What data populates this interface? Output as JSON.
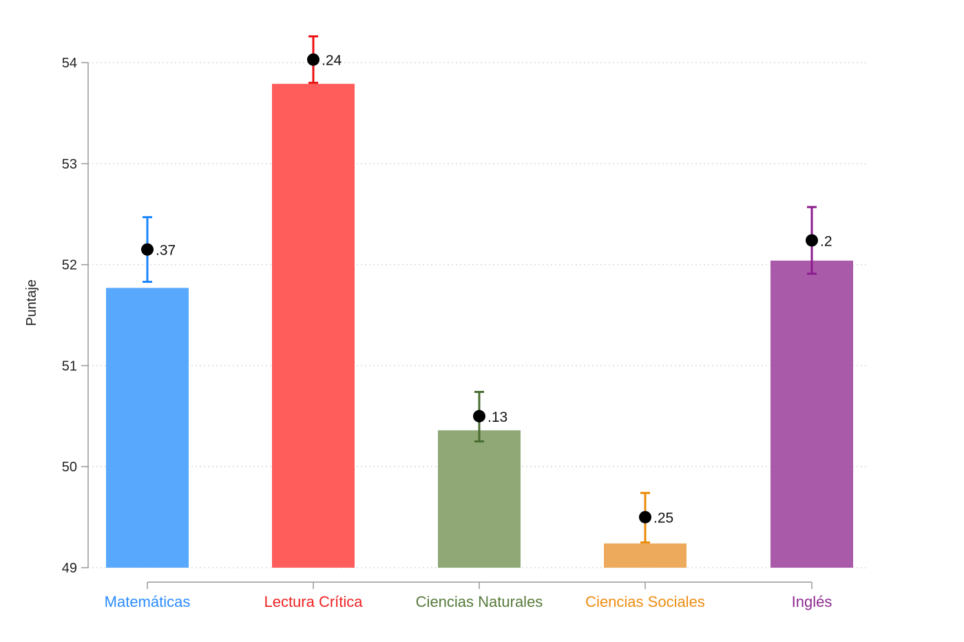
{
  "chart_data": {
    "type": "bar",
    "ylabel": "Puntaje",
    "ylim": [
      49,
      54
    ],
    "yticks": [
      "49",
      "50",
      "51",
      "52",
      "53",
      "54"
    ],
    "grid": true,
    "categories": [
      "Matemáticas",
      "Lectura Crítica",
      "Ciencias Naturales",
      "Ciencias Sociales",
      "Inglés"
    ],
    "values": [
      51.77,
      53.79,
      50.36,
      49.24,
      52.04
    ],
    "points": [
      52.15,
      54.03,
      50.5,
      49.5,
      52.24
    ],
    "ci_low": [
      51.83,
      53.8,
      50.25,
      49.25,
      51.91
    ],
    "ci_high": [
      52.47,
      54.26,
      50.74,
      49.74,
      52.57
    ],
    "point_labels": [
      ".37",
      ".24",
      ".13",
      ".25",
      ".2"
    ],
    "bar_colors": [
      "#58a9fd",
      "#ff5c5c",
      "#8fa876",
      "#eeaa5c",
      "#a95baa"
    ],
    "error_colors": [
      "#1a85ff",
      "#ee1111",
      "#4a6d31",
      "#ea8a0a",
      "#8c1b8e"
    ],
    "label_colors": [
      "#2a8cff",
      "#ee2222",
      "#557a3a",
      "#ee8c12",
      "#8f2a91"
    ]
  }
}
